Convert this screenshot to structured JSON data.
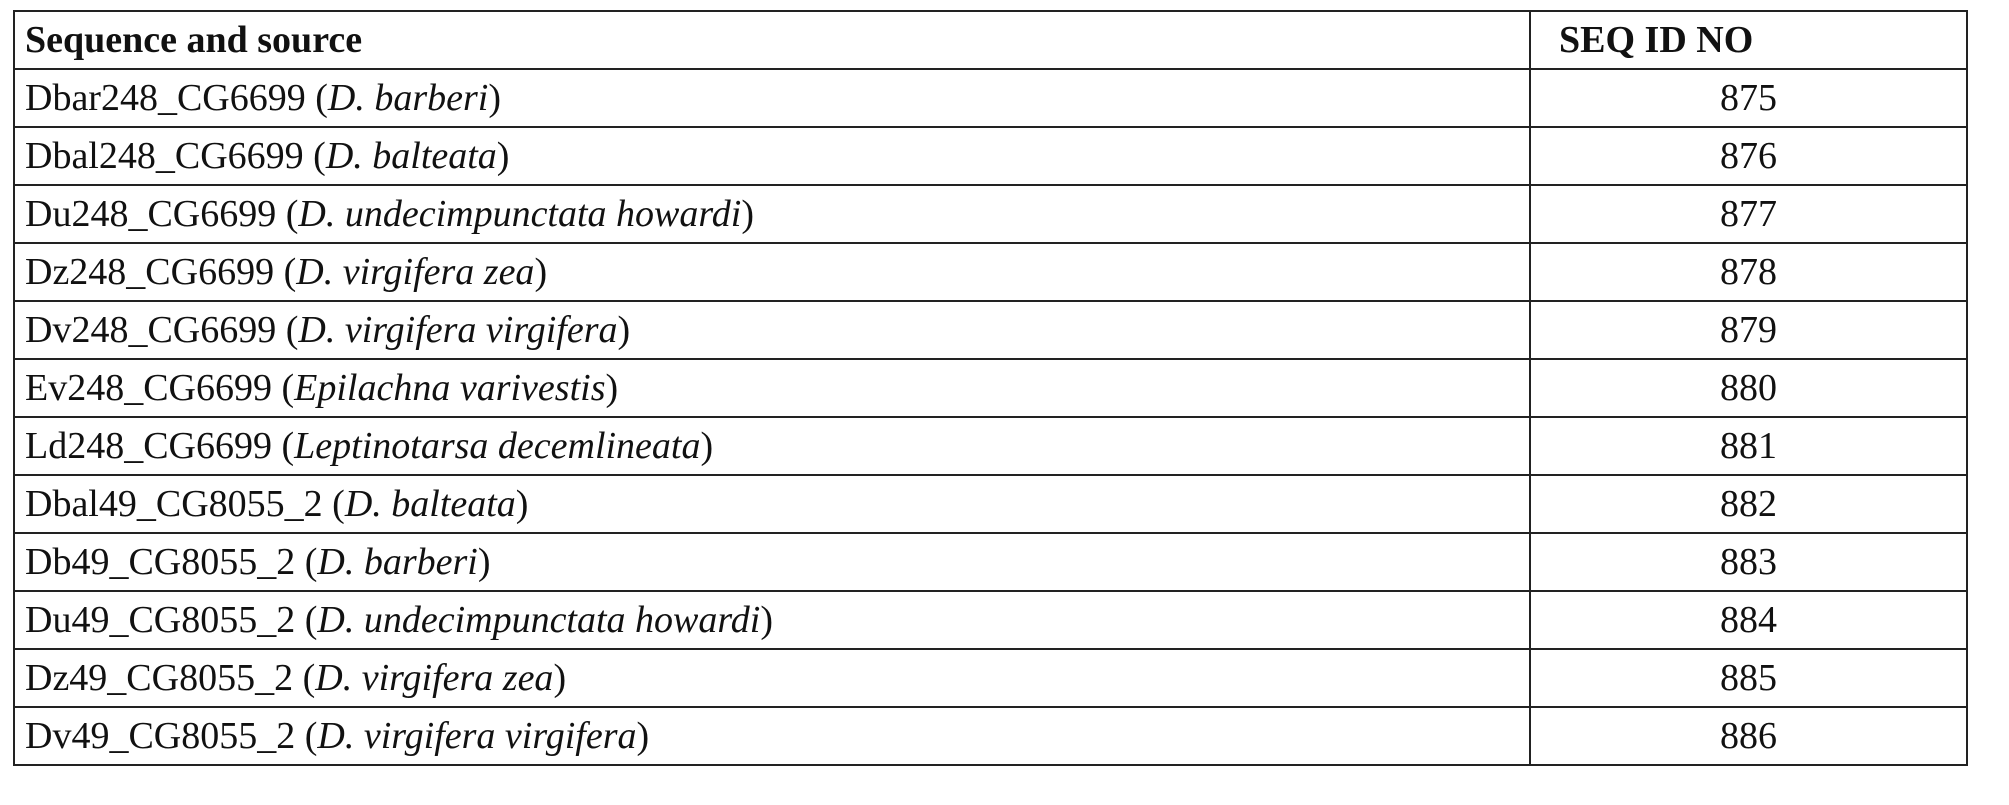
{
  "table": {
    "headers": [
      "Sequence and source",
      "SEQ ID NO"
    ],
    "rows": [
      {
        "name": "Dbar248_CG6699",
        "species": "D. barberi",
        "seq_id": "875"
      },
      {
        "name": "Dbal248_CG6699",
        "species": "D. balteata",
        "seq_id": "876"
      },
      {
        "name": "Du248_CG6699",
        "species": "D. undecimpunctata howardi",
        "seq_id": "877"
      },
      {
        "name": "Dz248_CG6699",
        "species": "D. virgifera zea",
        "seq_id": "878"
      },
      {
        "name": "Dv248_CG6699",
        "species": "D. virgifera virgifera",
        "seq_id": "879"
      },
      {
        "name": "Ev248_CG6699",
        "species": "Epilachna varivestis",
        "seq_id": "880"
      },
      {
        "name": "Ld248_CG6699",
        "species": "Leptinotarsa decemlineata",
        "seq_id": "881"
      },
      {
        "name": "Dbal49_CG8055_2",
        "species": "D. balteata",
        "seq_id": "882"
      },
      {
        "name": "Db49_CG8055_2",
        "species": "D. barberi",
        "seq_id": "883"
      },
      {
        "name": "Du49_CG8055_2",
        "species": "D. undecimpunctata howardi",
        "seq_id": "884"
      },
      {
        "name": "Dz49_CG8055_2",
        "species": "D. virgifera zea",
        "seq_id": "885"
      },
      {
        "name": "Dv49_CG8055_2",
        "species": "D. virgifera virgifera",
        "seq_id": "886"
      }
    ]
  }
}
